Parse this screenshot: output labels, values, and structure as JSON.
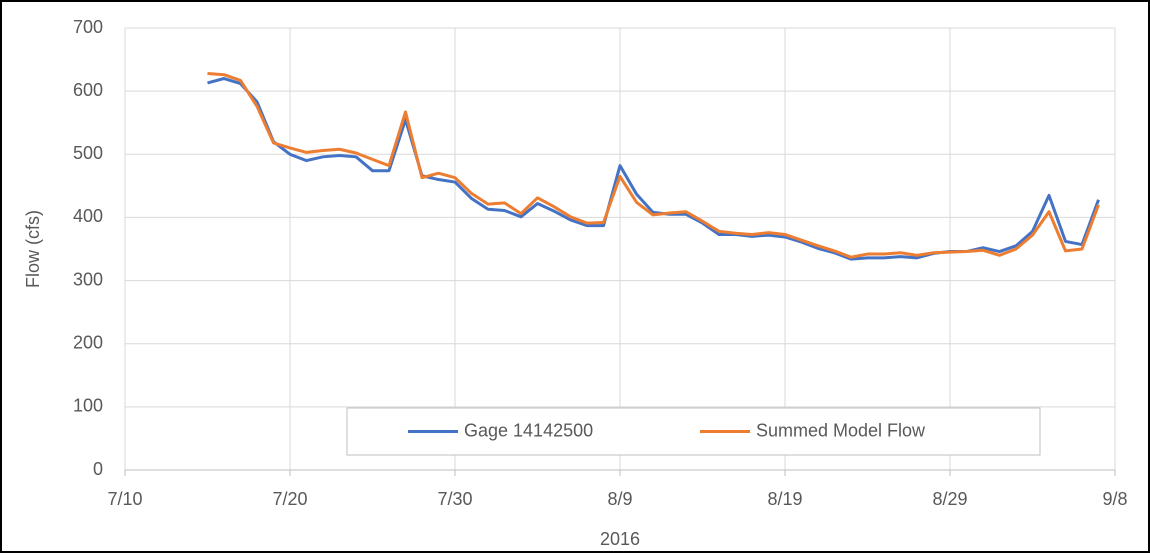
{
  "chart_data": {
    "type": "line",
    "x_label": "2016",
    "y_label": "Flow (cfs)",
    "x": [
      "2016-07-15",
      "2016-07-16",
      "2016-07-17",
      "2016-07-18",
      "2016-07-19",
      "2016-07-20",
      "2016-07-21",
      "2016-07-22",
      "2016-07-23",
      "2016-07-24",
      "2016-07-25",
      "2016-07-26",
      "2016-07-27",
      "2016-07-28",
      "2016-07-29",
      "2016-07-30",
      "2016-07-31",
      "2016-08-01",
      "2016-08-02",
      "2016-08-03",
      "2016-08-04",
      "2016-08-05",
      "2016-08-06",
      "2016-08-07",
      "2016-08-08",
      "2016-08-09",
      "2016-08-10",
      "2016-08-11",
      "2016-08-12",
      "2016-08-13",
      "2016-08-14",
      "2016-08-15",
      "2016-08-16",
      "2016-08-17",
      "2016-08-18",
      "2016-08-19",
      "2016-08-20",
      "2016-08-21",
      "2016-08-22",
      "2016-08-23",
      "2016-08-24",
      "2016-08-25",
      "2016-08-26",
      "2016-08-27",
      "2016-08-28",
      "2016-08-29",
      "2016-08-30",
      "2016-08-31",
      "2016-09-01",
      "2016-09-02",
      "2016-09-03",
      "2016-09-04",
      "2016-09-05",
      "2016-09-06",
      "2016-09-07"
    ],
    "series": [
      {
        "name": "Gage 14142500",
        "color": "#4472c4",
        "values": [
          613,
          620,
          612,
          583,
          520,
          500,
          490,
          496,
          498,
          496,
          474,
          474,
          555,
          466,
          460,
          456,
          430,
          413,
          411,
          401,
          422,
          410,
          396,
          387,
          387,
          482,
          437,
          408,
          405,
          405,
          391,
          373,
          373,
          370,
          372,
          369,
          361,
          351,
          344,
          334,
          336,
          336,
          338,
          336,
          343,
          346,
          346,
          352,
          346,
          355,
          378,
          435,
          362,
          357,
          428
        ]
      },
      {
        "name": "Summed Model Flow",
        "color": "#ed7d31",
        "values": [
          628,
          626,
          617,
          576,
          518,
          510,
          503,
          506,
          508,
          502,
          492,
          482,
          567,
          463,
          470,
          463,
          438,
          421,
          423,
          406,
          431,
          417,
          401,
          391,
          392,
          465,
          424,
          404,
          407,
          409,
          394,
          378,
          375,
          373,
          376,
          373,
          364,
          355,
          347,
          337,
          342,
          342,
          344,
          340,
          344,
          345,
          346,
          348,
          340,
          350,
          372,
          409,
          347,
          350,
          420
        ]
      }
    ],
    "xlim": [
      "2016-07-10",
      "2016-09-08"
    ],
    "xticks": [
      {
        "value": "2016-07-10",
        "label": "7/10"
      },
      {
        "value": "2016-07-20",
        "label": "7/20"
      },
      {
        "value": "2016-07-30",
        "label": "7/30"
      },
      {
        "value": "2016-08-09",
        "label": "8/9"
      },
      {
        "value": "2016-08-19",
        "label": "8/19"
      },
      {
        "value": "2016-08-29",
        "label": "8/29"
      },
      {
        "value": "2016-09-08",
        "label": "9/8"
      }
    ],
    "ylim": [
      0,
      700
    ],
    "yticks": [
      0,
      100,
      200,
      300,
      400,
      500,
      600,
      700
    ],
    "grid": true,
    "legend": "bottom"
  }
}
